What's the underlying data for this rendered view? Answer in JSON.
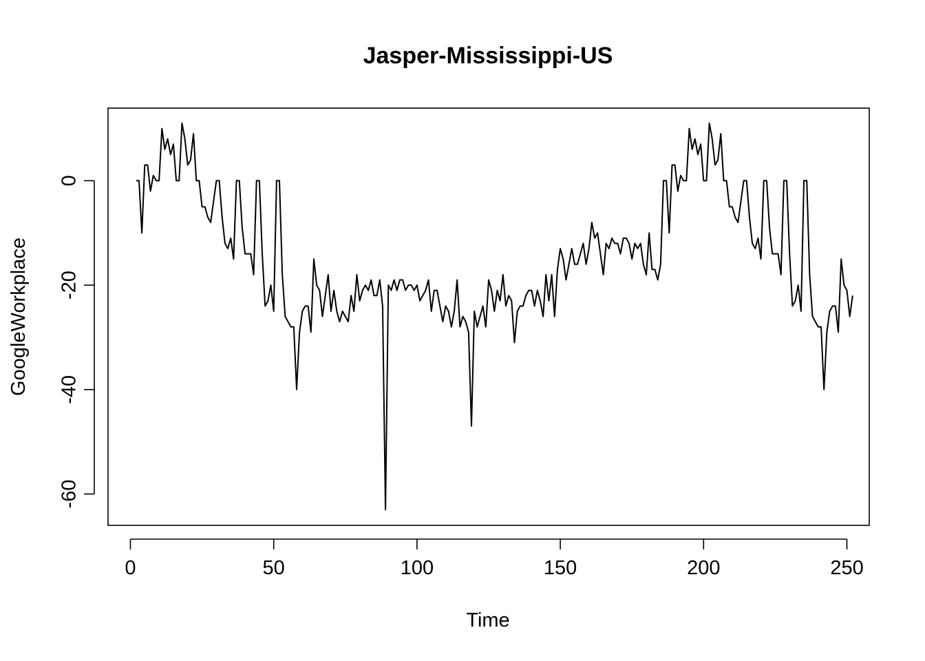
{
  "chart_data": {
    "type": "line",
    "title": "Jasper-Mississippi-US",
    "xlabel": "Time",
    "ylabel": "GoogleWorkplace",
    "xlim": [
      -7.8,
      257.8
    ],
    "ylim": [
      -66.0,
      13.9
    ],
    "x_ticks": [
      0,
      50,
      100,
      150,
      200,
      250
    ],
    "x_tick_labels": [
      "0",
      "50",
      "100",
      "150",
      "200",
      "250"
    ],
    "y_ticks": [
      0,
      -20,
      -40,
      -60
    ],
    "y_tick_labels": [
      "0",
      "-20",
      "-40",
      "-60"
    ],
    "grid": false,
    "series": [
      {
        "x_start": 2,
        "values": [
          0,
          0,
          -10,
          3,
          3,
          -2,
          1,
          0,
          0,
          10,
          6,
          8,
          5,
          7,
          0,
          0,
          11,
          8,
          3,
          4,
          9,
          0,
          0,
          -5,
          -5,
          -7,
          -8,
          -4,
          0,
          0,
          -7,
          -12,
          -13,
          -11,
          -15,
          0,
          0,
          -9,
          -14,
          -14,
          -14,
          -18,
          0,
          0,
          -14,
          -24,
          -23,
          -20,
          -25,
          0,
          0,
          -18,
          -26,
          -27,
          -28,
          -28,
          -40,
          -29,
          -25,
          -24,
          -24,
          -29,
          -15,
          -20,
          -21,
          -26,
          -22,
          -18,
          -25,
          -21,
          -25,
          -27,
          -25,
          -26,
          -27,
          -22,
          -25,
          -18,
          -23,
          -21,
          -20,
          -21,
          -19,
          -22,
          -22,
          -19,
          -24,
          -63,
          -20,
          -21,
          -19,
          -21,
          -19,
          -19,
          -21,
          -20,
          -20,
          -21,
          -20,
          -23,
          -22,
          -21,
          -19,
          -25,
          -21,
          -21,
          -24,
          -27,
          -24,
          -25,
          -28,
          -25,
          -19,
          -28,
          -26,
          -27,
          -29,
          -47,
          -25,
          -28,
          -26,
          -24,
          -28,
          -19,
          -21,
          -25,
          -21,
          -23,
          -18,
          -24,
          -22,
          -23,
          -31,
          -25,
          -24,
          -24,
          -22,
          -21,
          -21,
          -24,
          -21,
          -23,
          -26,
          -18,
          -23,
          -18,
          -26,
          -17,
          -13,
          -15,
          -19,
          -16,
          -13,
          -16,
          -16,
          -14,
          -12,
          -16,
          -13,
          -8,
          -11,
          -10,
          -14,
          -18,
          -12,
          -13,
          -11,
          -12,
          -12,
          -14,
          -11,
          -11,
          -12,
          -15,
          -12,
          -13,
          -12,
          -16,
          -18,
          -10,
          -17,
          -17,
          -19,
          -16,
          0,
          0,
          -10,
          3,
          3,
          -2,
          1,
          0,
          0,
          10,
          6,
          8,
          5,
          7,
          0,
          0,
          11,
          8,
          3,
          4,
          9,
          0,
          0,
          -5,
          -5,
          -7,
          -8,
          -4,
          0,
          0,
          -7,
          -12,
          -13,
          -11,
          -15,
          0,
          0,
          -9,
          -14,
          -14,
          -14,
          -18,
          0,
          0,
          -14,
          -24,
          -23,
          -20,
          -25,
          0,
          0,
          -18,
          -26,
          -27,
          -28,
          -28,
          -40,
          -29,
          -25,
          -24,
          -24,
          -29,
          -15,
          -20,
          -21,
          -26,
          -22
        ]
      }
    ]
  }
}
